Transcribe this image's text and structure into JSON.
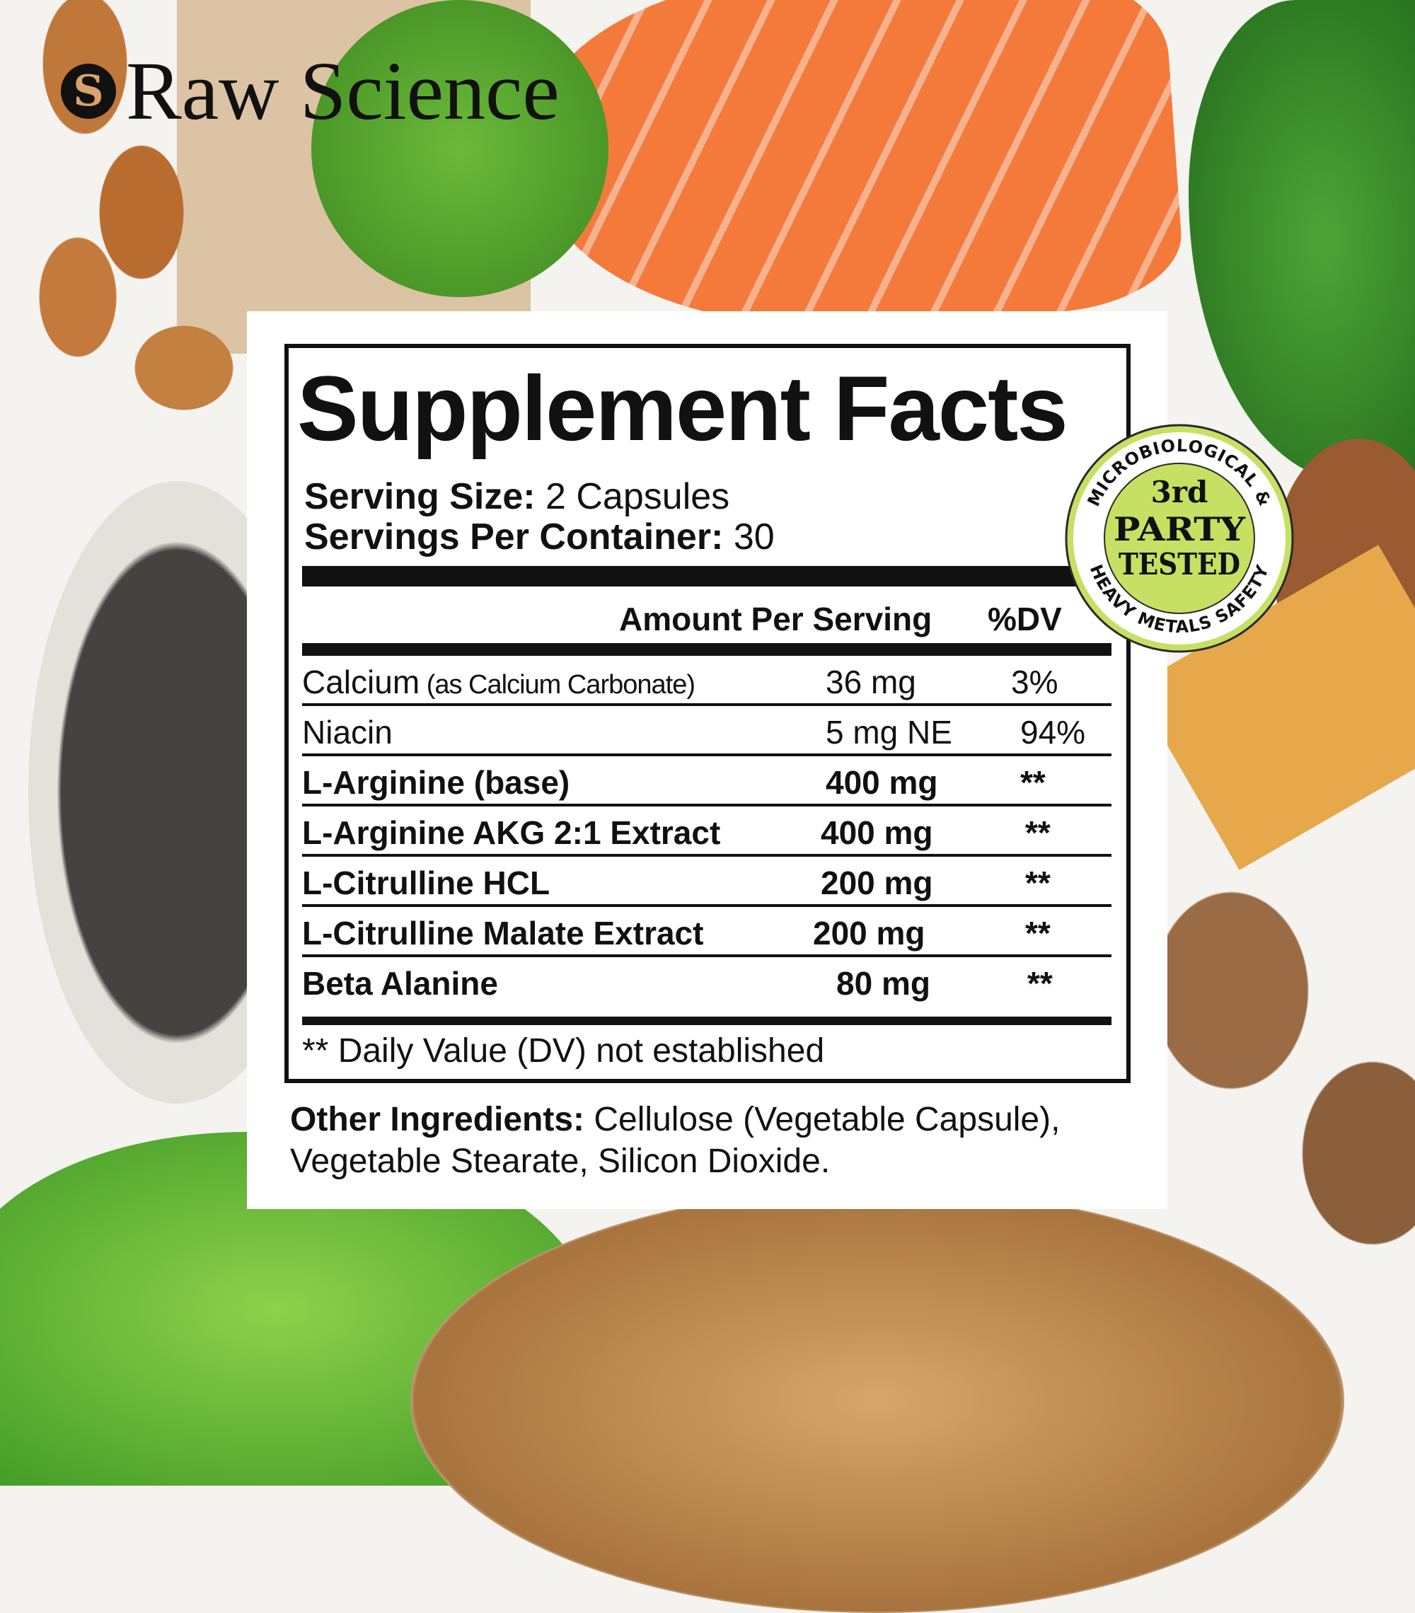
{
  "brand": {
    "name": "Raw Science",
    "logo_letter": "S"
  },
  "label": {
    "title": "Supplement Facts",
    "serving_size_label": "Serving Size:",
    "serving_size_value": " 2 Capsules",
    "servings_per_container_label": "Servings Per Container:",
    "servings_per_container_value": " 30",
    "columns": {
      "amount": "Amount Per Serving",
      "dv": "%DV"
    },
    "rows": [
      {
        "name": "Calcium",
        "note": " (as Calcium Carbonate)",
        "amount": "36 mg",
        "dv": "3%",
        "bold": false
      },
      {
        "name": "Niacin",
        "note": "",
        "amount": "5 mg NE",
        "dv": "94%",
        "bold": false
      },
      {
        "name": "L-Arginine (base)",
        "note": "",
        "amount": "400 mg",
        "dv": "**",
        "bold": true
      },
      {
        "name": "L-Arginine AKG 2:1 Extract",
        "note": "",
        "amount": "400 mg",
        "dv": "**",
        "bold": true
      },
      {
        "name": "L-Citrulline HCL",
        "note": "",
        "amount": "200 mg",
        "dv": "**",
        "bold": true
      },
      {
        "name": "L-Citrulline Malate Extract",
        "note": "",
        "amount": "200 mg",
        "dv": "**",
        "bold": true
      },
      {
        "name": "Beta Alanine",
        "note": "",
        "amount": "80 mg",
        "dv": "**",
        "bold": true
      }
    ],
    "footnote": "** Daily Value (DV) not established",
    "other_ingredients_label": "Other Ingredients:",
    "other_ingredients_value": " Cellulose (Vegetable Capsule), Vegetable Stearate, Silicon Dioxide."
  },
  "badge": {
    "top_arc": "MICROBIOLOGICAL &",
    "bottom_arc": "HEAVY METALS SAFETY",
    "line1": "3rd",
    "line2": "PARTY",
    "line3": "TESTED",
    "color": "#c5e063"
  }
}
